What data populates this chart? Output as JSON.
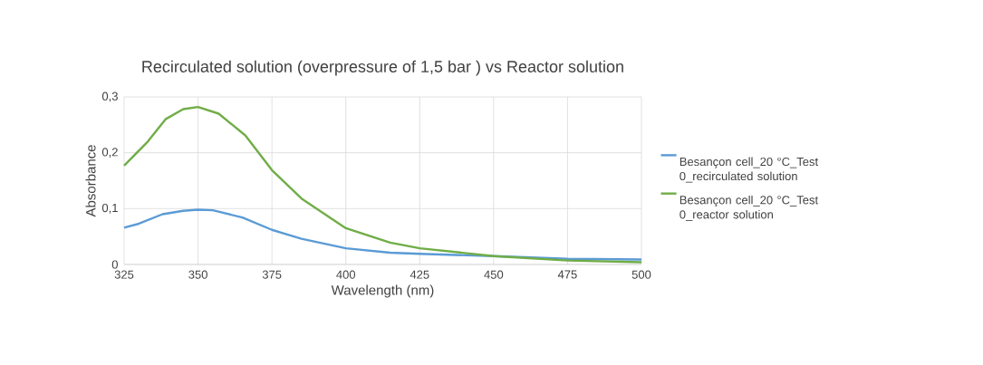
{
  "chart_data": {
    "type": "line",
    "title": "Recirculated solution (overpressure of 1,5 bar ) vs Reactor solution",
    "xlabel": "Wavelength (nm)",
    "ylabel": "Absorbance",
    "xlim": [
      325,
      500
    ],
    "xticks": [
      325,
      350,
      375,
      400,
      425,
      450,
      475,
      500
    ],
    "ylim": [
      0,
      0.3
    ],
    "yticks": [
      0,
      {
        "value": 0.1,
        "label": "0,1"
      },
      {
        "value": 0.2,
        "label": "0,2"
      },
      {
        "value": 0.3,
        "label": "0,3"
      }
    ],
    "grid": true,
    "legend": "right",
    "marker": "none",
    "line_style": "solid",
    "series": [
      {
        "name": "Besançon cell_20 °C_Test 0_recirculated solution",
        "color": "#5b9bd5",
        "x": [
          325,
          330,
          338,
          345,
          350,
          355,
          365,
          375,
          385,
          400,
          415,
          425,
          450,
          475,
          500
        ],
        "values": [
          0.066,
          0.073,
          0.09,
          0.096,
          0.098,
          0.097,
          0.084,
          0.062,
          0.046,
          0.029,
          0.021,
          0.019,
          0.015,
          0.01,
          0.009
        ]
      },
      {
        "name": "Besançon cell_20 °C_Test 0_reactor solution",
        "color": "#70ad47",
        "x": [
          325,
          333,
          339,
          345,
          350,
          357,
          366,
          375,
          385,
          400,
          415,
          425,
          450,
          475,
          500
        ],
        "values": [
          0.177,
          0.22,
          0.26,
          0.278,
          0.282,
          0.27,
          0.231,
          0.169,
          0.118,
          0.065,
          0.039,
          0.029,
          0.015,
          0.007,
          0.004
        ]
      }
    ]
  }
}
